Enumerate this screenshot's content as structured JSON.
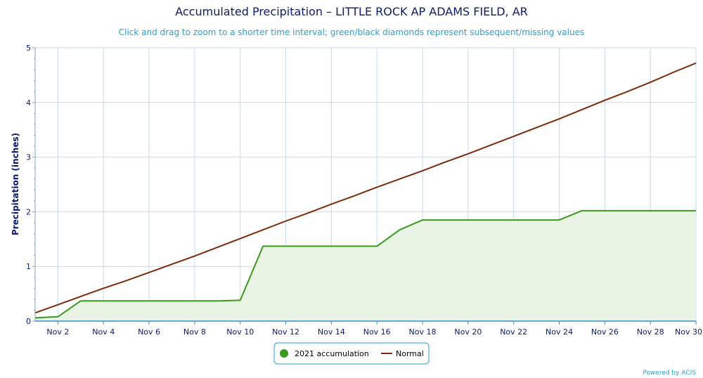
{
  "chart_data": {
    "type": "line",
    "title": "Accumulated Precipitation – LITTLE ROCK AP ADAMS FIELD, AR",
    "subtitle": "Click and drag to zoom to a shorter time interval; green/black diamonds represent subsequent/missing values",
    "xlabel": "",
    "ylabel": "Precipitation (inches)",
    "xlim": [
      1,
      30
    ],
    "ylim": [
      0,
      5
    ],
    "yticks": [
      0,
      1,
      2,
      3,
      4,
      5
    ],
    "xticks": [
      {
        "day": 2,
        "label": "Nov 2"
      },
      {
        "day": 4,
        "label": "Nov 4"
      },
      {
        "day": 6,
        "label": "Nov 6"
      },
      {
        "day": 8,
        "label": "Nov 8"
      },
      {
        "day": 10,
        "label": "Nov 10"
      },
      {
        "day": 12,
        "label": "Nov 12"
      },
      {
        "day": 14,
        "label": "Nov 14"
      },
      {
        "day": 16,
        "label": "Nov 16"
      },
      {
        "day": 18,
        "label": "Nov 18"
      },
      {
        "day": 20,
        "label": "Nov 20"
      },
      {
        "day": 22,
        "label": "Nov 22"
      },
      {
        "day": 24,
        "label": "Nov 24"
      },
      {
        "day": 26,
        "label": "Nov 26"
      },
      {
        "day": 28,
        "label": "Nov 28"
      },
      {
        "day": 30,
        "label": "Nov 30"
      }
    ],
    "grid": true,
    "series": [
      {
        "name": "2021 accumulation",
        "color": "#3a9a1e",
        "fill": "#eaf4e4",
        "area": true,
        "x": [
          1,
          2,
          3,
          4,
          5,
          6,
          7,
          8,
          9,
          10,
          11,
          12,
          13,
          14,
          15,
          16,
          17,
          18,
          19,
          20,
          21,
          22,
          23,
          24,
          25,
          26,
          27,
          28,
          29,
          30
        ],
        "values": [
          0.06,
          0.08,
          0.37,
          0.37,
          0.37,
          0.37,
          0.37,
          0.37,
          0.37,
          0.38,
          1.37,
          1.37,
          1.37,
          1.37,
          1.37,
          1.37,
          1.67,
          1.85,
          1.85,
          1.85,
          1.85,
          1.85,
          1.85,
          1.85,
          2.02,
          2.02,
          2.02,
          2.02,
          2.02,
          2.02
        ]
      },
      {
        "name": "Normal",
        "color": "#7b2a0c",
        "area": false,
        "x": [
          1,
          2,
          3,
          4,
          5,
          6,
          7,
          8,
          9,
          10,
          11,
          12,
          13,
          14,
          15,
          16,
          17,
          18,
          19,
          20,
          21,
          22,
          23,
          24,
          25,
          26,
          27,
          28,
          29,
          30
        ],
        "values": [
          0.15,
          0.3,
          0.45,
          0.6,
          0.74,
          0.89,
          1.04,
          1.19,
          1.35,
          1.51,
          1.67,
          1.83,
          1.98,
          2.14,
          2.29,
          2.45,
          2.6,
          2.75,
          2.91,
          3.06,
          3.22,
          3.38,
          3.54,
          3.7,
          3.87,
          4.04,
          4.2,
          4.37,
          4.55,
          4.72
        ]
      }
    ],
    "legend_position": "bottom-center",
    "credits": "Powered by ACIS"
  }
}
